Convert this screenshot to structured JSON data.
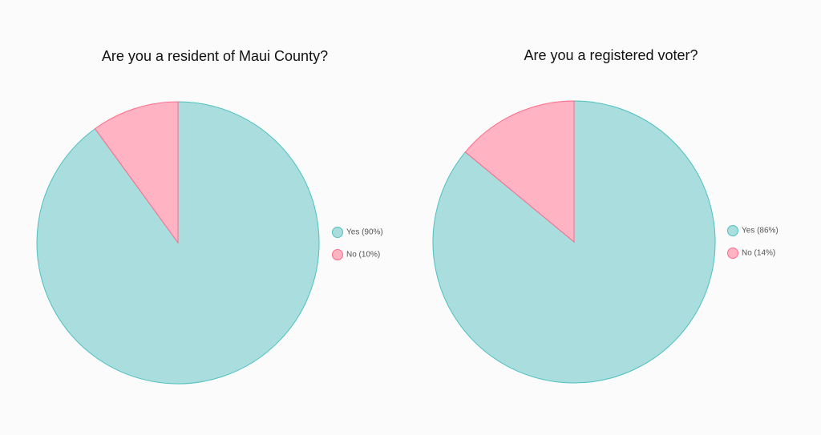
{
  "chart_data": [
    {
      "type": "pie",
      "title": "Are you a resident of Maui County?",
      "categories": [
        "Yes (90%)",
        "No (10%)"
      ],
      "values": [
        90,
        10
      ],
      "colors": [
        "#aadddd",
        "#ffb3c3"
      ],
      "border_colors": [
        "#4fc0c0",
        "#ff6b8a"
      ],
      "legend": "right"
    },
    {
      "type": "pie",
      "title": "Are you a registered voter?",
      "categories": [
        "Yes (86%)",
        "No (14%)"
      ],
      "values": [
        86,
        14
      ],
      "colors": [
        "#aadddd",
        "#ffb3c3"
      ],
      "border_colors": [
        "#4fc0c0",
        "#ff6b8a"
      ],
      "legend": "right"
    }
  ]
}
